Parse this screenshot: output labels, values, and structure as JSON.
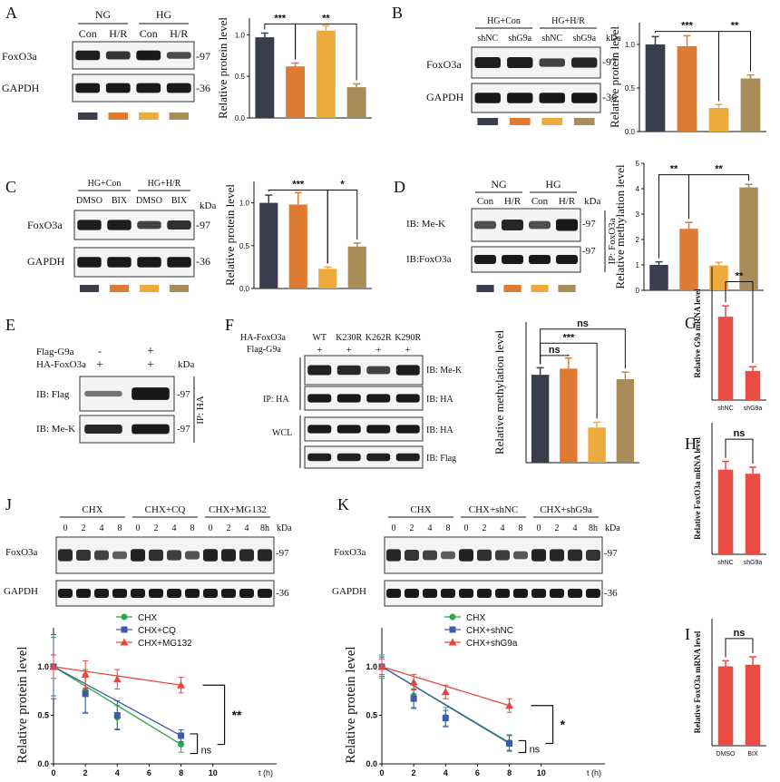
{
  "colors": {
    "navy": "#3a3d4d",
    "orange": "#df7a33",
    "yellow": "#eeaa3c",
    "khaki": "#aa8c58",
    "red": "#e84c45",
    "green": "#2ca84c",
    "blue": "#3f5aa6",
    "redline": "#e8473f"
  },
  "units": {
    "kda": "kDa",
    "mw97": "-97",
    "mw36": "-36"
  },
  "panels": {
    "A": {
      "letter": "A",
      "blot": {
        "groups": [
          "NG",
          "HG"
        ],
        "lanes": [
          "Con",
          "H/R",
          "Con",
          "H/R"
        ],
        "rows": [
          "FoxO3a",
          "GAPDH"
        ]
      }
    },
    "B": {
      "letter": "B",
      "blot": {
        "groups": [
          "HG+Con",
          "HG+H/R"
        ],
        "lanes": [
          "shNC",
          "shG9a",
          "shNC",
          "shG9a"
        ],
        "rows": [
          "FoxO3a",
          "GAPDH"
        ]
      }
    },
    "C": {
      "letter": "C",
      "blot": {
        "groups": [
          "HG+Con",
          "HG+H/R"
        ],
        "lanes": [
          "DMSO",
          "BIX",
          "DMSO",
          "BIX"
        ],
        "rows": [
          "FoxO3a",
          "GAPDH"
        ]
      }
    },
    "D": {
      "letter": "D",
      "blot": {
        "groups": [
          "NG",
          "HG"
        ],
        "lanes": [
          "Con",
          "H/R",
          "Con",
          "H/R"
        ],
        "rows": [
          "IB: Me-K",
          "IB:FoxO3a"
        ],
        "ip": "IP: FoxO3a"
      }
    },
    "E": {
      "letter": "E",
      "row1": "Flag-G9a",
      "row2": "HA-FoxO3a",
      "signs1": [
        "-",
        "+"
      ],
      "signs2": [
        "+",
        "+"
      ],
      "rows": [
        "IB: Flag",
        "IB: Me-K"
      ],
      "ip": "IP: HA"
    },
    "F": {
      "letter": "F",
      "row1": "HA-FoxO3a",
      "row2": "Flag-G9a",
      "lanes": [
        "WT",
        "K230R",
        "K262R",
        "K290R"
      ],
      "signs": [
        "+",
        "+",
        "+",
        "+"
      ],
      "rows": [
        "IB: Me-K",
        "IB: HA",
        "IB: HA",
        "IB: Flag"
      ],
      "ip": "IP: HA",
      "wcl": "WCL"
    },
    "G": {
      "letter": "G"
    },
    "H": {
      "letter": "H"
    },
    "I": {
      "letter": "I"
    },
    "J": {
      "letter": "J",
      "groups": [
        "CHX",
        "CHX+CQ",
        "CHX+MG132"
      ],
      "times": [
        "0",
        "2",
        "4",
        "8",
        "0",
        "2",
        "4",
        "8",
        "0",
        "2",
        "4",
        "8h"
      ],
      "rows": [
        "FoxO3a",
        "GAPDH"
      ]
    },
    "K": {
      "letter": "K",
      "groups": [
        "CHX",
        "CHX+shNC",
        "CHX+shG9a"
      ],
      "times": [
        "0",
        "2",
        "4",
        "8",
        "0",
        "2",
        "4",
        "8",
        "0",
        "2",
        "4",
        "8h"
      ],
      "rows": [
        "FoxO3a",
        "GAPDH"
      ]
    }
  },
  "chart_data": [
    {
      "id": "A",
      "type": "bar",
      "ylabel": "Relative protein level",
      "ylim": [
        0,
        1.2
      ],
      "ticks": [
        "0.0",
        "0.5",
        "1.0"
      ],
      "categories": [
        "NG Con",
        "NG H/R",
        "HG Con",
        "HG H/R"
      ],
      "values": [
        0.97,
        0.62,
        1.05,
        0.37
      ],
      "errors": [
        0.05,
        0.04,
        0.06,
        0.04
      ],
      "sig": [
        {
          "a": 0,
          "b": 1,
          "label": "***",
          "h": 1.13
        },
        {
          "a": 1,
          "b": 3,
          "label": "**",
          "h": 1.13
        }
      ]
    },
    {
      "id": "B",
      "type": "bar",
      "ylabel": "Relative protein level",
      "ylim": [
        0,
        1.25
      ],
      "ticks": [
        "0.0",
        "0.5",
        "1.0"
      ],
      "categories": [
        "HG+Con shNC",
        "HG+Con shG9a",
        "HG+H/R shNC",
        "HG+H/R shG9a"
      ],
      "values": [
        1.0,
        0.98,
        0.27,
        0.61
      ],
      "errors": [
        0.09,
        0.12,
        0.04,
        0.04
      ],
      "sig": [
        {
          "a": 0,
          "b": 2,
          "label": "***",
          "h": 1.15
        },
        {
          "a": 2,
          "b": 3,
          "label": "**",
          "h": 1.15
        }
      ]
    },
    {
      "id": "C",
      "type": "bar",
      "ylabel": "Relative protein level",
      "ylim": [
        0,
        1.25
      ],
      "ticks": [
        "0.0",
        "0.5",
        "1.0"
      ],
      "categories": [
        "HG+Con DMSO",
        "HG+Con BIX",
        "HG+H/R DMSO",
        "HG+H/R BIX"
      ],
      "values": [
        1.0,
        0.98,
        0.23,
        0.49
      ],
      "errors": [
        0.09,
        0.14,
        0.02,
        0.04
      ],
      "sig": [
        {
          "a": 0,
          "b": 2,
          "label": "***",
          "h": 1.15
        },
        {
          "a": 2,
          "b": 3,
          "label": "*",
          "h": 1.15
        }
      ]
    },
    {
      "id": "D",
      "type": "bar",
      "ylabel": "Relative methylation level",
      "ylim": [
        0,
        5
      ],
      "ticks": [
        "0",
        "1",
        "2",
        "3",
        "4",
        "5"
      ],
      "categories": [
        "NG Con",
        "NG H/R",
        "HG Con",
        "HG H/R"
      ],
      "values": [
        1.0,
        2.42,
        0.98,
        4.05
      ],
      "errors": [
        0.12,
        0.25,
        0.12,
        0.12
      ],
      "sig": [
        {
          "a": 0,
          "b": 1,
          "label": "**",
          "h": 4.55
        },
        {
          "a": 1,
          "b": 3,
          "label": "**",
          "h": 4.55
        }
      ]
    },
    {
      "id": "F",
      "type": "bar",
      "ylabel": "Relative methylation level",
      "ylim": [
        0,
        1.6
      ],
      "ticks": [],
      "categories": [
        "WT",
        "K230R",
        "K262R",
        "K290R"
      ],
      "values": [
        1.0,
        1.07,
        0.4,
        0.95
      ],
      "errors": [
        0.08,
        0.12,
        0.06,
        0.08
      ],
      "sig": [
        {
          "a": 0,
          "b": 1,
          "label": "ns",
          "h": 1.22
        },
        {
          "a": 0,
          "b": 2,
          "label": "***",
          "h": 1.36
        },
        {
          "a": 0,
          "b": 3,
          "label": "ns",
          "h": 1.52
        }
      ]
    },
    {
      "id": "G",
      "type": "bar",
      "ylabel": "Relative G9a mRNA level",
      "ylim": [
        0,
        1.6
      ],
      "ticks": [],
      "categories": [
        "shNC",
        "shG9a"
      ],
      "values": [
        1.0,
        0.35
      ],
      "errors": [
        0.13,
        0.05
      ],
      "sig": [
        {
          "a": 0,
          "b": 1,
          "label": "**",
          "h": 1.42
        }
      ]
    },
    {
      "id": "H",
      "type": "bar",
      "ylabel": "Relative FoxO3a mRNA level",
      "ylim": [
        0,
        1.6
      ],
      "ticks": [],
      "categories": [
        "shNC",
        "shG9a"
      ],
      "values": [
        1.03,
        0.98
      ],
      "errors": [
        0.1,
        0.08
      ],
      "sig": [
        {
          "a": 0,
          "b": 1,
          "label": "ns",
          "h": 1.4
        }
      ]
    },
    {
      "id": "I",
      "type": "bar",
      "ylabel": "Relative FoxO3a mRNA level",
      "ylim": [
        0,
        1.6
      ],
      "ticks": [],
      "categories": [
        "DMSO",
        "BIX"
      ],
      "values": [
        1.0,
        1.02
      ],
      "errors": [
        0.07,
        0.1
      ],
      "sig": [
        {
          "a": 0,
          "b": 1,
          "label": "ns",
          "h": 1.35
        }
      ]
    },
    {
      "id": "J",
      "type": "line",
      "ylabel": "Relative protein level",
      "xlabel": "t (h)",
      "xlim": [
        0,
        14
      ],
      "ylim": [
        0,
        1.4
      ],
      "xticks": [
        "0",
        "2",
        "4",
        "6",
        "8",
        "10"
      ],
      "yticks": [
        "0.0",
        "0.5",
        "1.0"
      ],
      "x": [
        0,
        2,
        4,
        8
      ],
      "series": [
        {
          "name": "CHX",
          "color": "#2ca84c",
          "marker": "circle",
          "values": [
            1.0,
            0.75,
            0.48,
            0.2
          ],
          "errors": [
            0.3,
            0.22,
            0.12,
            0.08
          ]
        },
        {
          "name": "CHX+CQ",
          "color": "#3f5aa6",
          "marker": "square",
          "values": [
            1.0,
            0.72,
            0.5,
            0.29
          ],
          "errors": [
            0.33,
            0.2,
            0.15,
            0.06
          ]
        },
        {
          "name": "CHX+MG132",
          "color": "#e8473f",
          "marker": "triangle",
          "values": [
            1.0,
            0.92,
            0.87,
            0.81
          ],
          "errors": [
            0.12,
            0.14,
            0.1,
            0.08
          ]
        }
      ],
      "sig": [
        {
          "label": "**",
          "y1": 0.81,
          "y2": 0.2
        },
        {
          "label": "ns",
          "y1": 0.29,
          "y2": 0.2
        }
      ]
    },
    {
      "id": "K",
      "type": "line",
      "ylabel": "Relative protein level",
      "xlabel": "t (h)",
      "xlim": [
        0,
        14
      ],
      "ylim": [
        0,
        1.4
      ],
      "xticks": [
        "0",
        "2",
        "4",
        "6",
        "8",
        "10"
      ],
      "yticks": [
        "0.0",
        "0.5",
        "1.0"
      ],
      "x": [
        0,
        2,
        4,
        8
      ],
      "series": [
        {
          "name": "CHX",
          "color": "#2ca84c",
          "marker": "circle",
          "values": [
            1.0,
            0.7,
            0.48,
            0.22
          ],
          "errors": [
            0.12,
            0.12,
            0.1,
            0.08
          ]
        },
        {
          "name": "CHX+shNC",
          "color": "#3f5aa6",
          "marker": "square",
          "values": [
            1.0,
            0.67,
            0.47,
            0.21
          ],
          "errors": [
            0.1,
            0.1,
            0.08,
            0.08
          ]
        },
        {
          "name": "CHX+shG9a",
          "color": "#e8473f",
          "marker": "triangle",
          "values": [
            1.0,
            0.84,
            0.74,
            0.6
          ],
          "errors": [
            0.08,
            0.08,
            0.07,
            0.07
          ]
        }
      ],
      "sig": [
        {
          "label": "*",
          "y1": 0.6,
          "y2": 0.21
        },
        {
          "label": "ns",
          "y1": 0.22,
          "y2": 0.21
        }
      ]
    }
  ]
}
